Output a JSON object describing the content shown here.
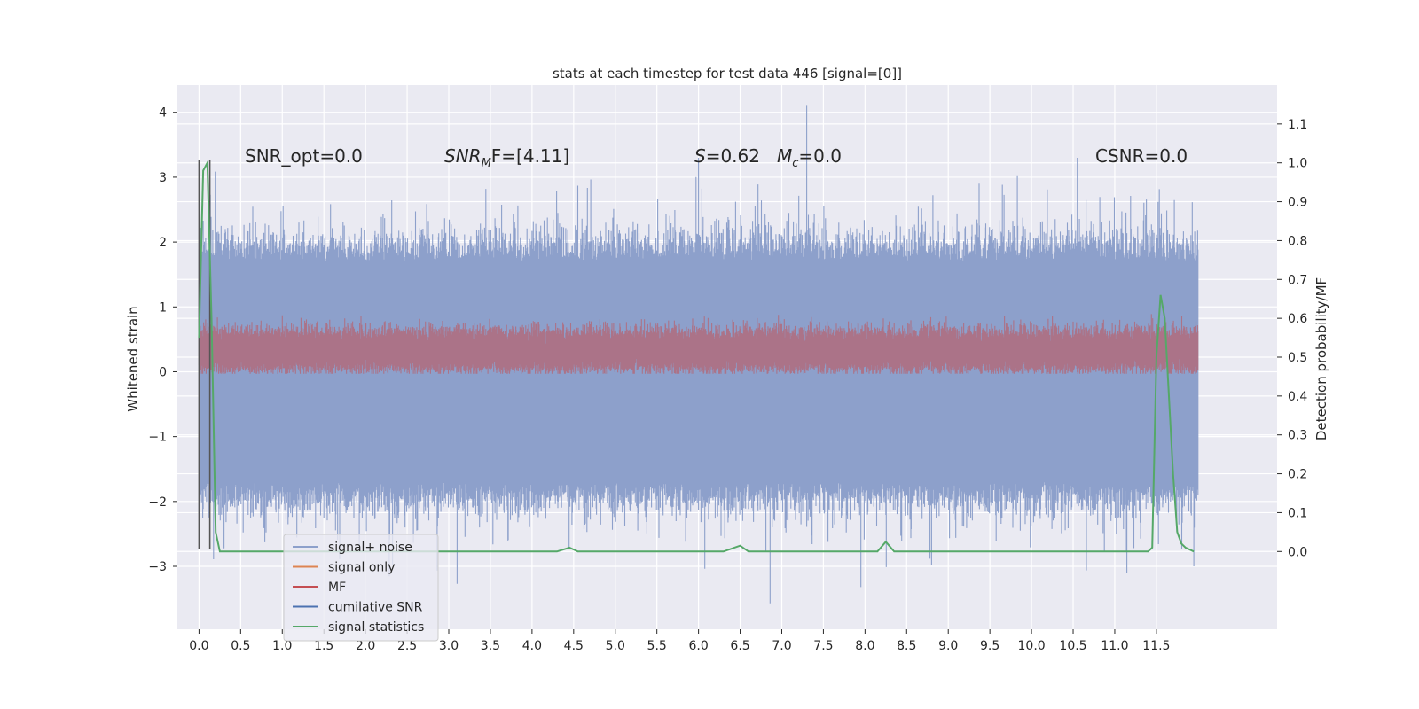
{
  "chart_data": {
    "type": "line",
    "title": "stats at each timestep for test data 446 [signal=[0]]",
    "xlabel": "",
    "ylabel": "Whitened strain",
    "ylabel_right": "Detection probability/MF",
    "xlim": [
      -0.26,
      12.95
    ],
    "ylim": [
      -3.97,
      4.42
    ],
    "ylim_right": [
      -0.2,
      1.2
    ],
    "x_ticks": [
      "0.0",
      "0.5",
      "1.0",
      "1.5",
      "2.0",
      "2.5",
      "3.0",
      "3.5",
      "4.0",
      "4.5",
      "5.0",
      "5.5",
      "6.0",
      "6.5",
      "7.0",
      "7.5",
      "8.0",
      "8.5",
      "9.0",
      "9.5",
      "10.0",
      "10.5",
      "11.0",
      "11.5"
    ],
    "y_ticks": [
      "4",
      "3",
      "2",
      "1",
      "0",
      "−1",
      "−2",
      "−3"
    ],
    "y_ticks_right": [
      "1.1",
      "1.0",
      "0.9",
      "0.8",
      "0.7",
      "0.6",
      "0.5",
      "0.4",
      "0.3",
      "0.2",
      "0.1",
      "0.0"
    ],
    "grid": true,
    "legend_placement": "lower-left",
    "legend": [
      {
        "label": "signal+ noise",
        "color": "#8da0cb"
      },
      {
        "label": "signal only",
        "color": "#dd8452"
      },
      {
        "label": "MF",
        "color": "#c44e52"
      },
      {
        "label": "cumilative SNR",
        "color": "#4c72b0"
      },
      {
        "label": "signal statistics",
        "color": "#55a868"
      }
    ],
    "annotations": {
      "snr_opt": "SNR_opt=0.0",
      "snr_mf_sym": "SNR",
      "snr_mf_sub": "M",
      "snr_mf_rest": "F=[4.11]",
      "s_sym": "S",
      "s_val": "=0.62",
      "mc_sym": "M",
      "mc_sub": "c",
      "mc_val": "=0.0",
      "csnr": "CSNR=0.0"
    },
    "series": [
      {
        "name": "signal+ noise",
        "axis": "left",
        "color": "#8da0cb",
        "x_range": [
          0.0,
          12.0
        ],
        "band_low": -1.7,
        "band_high": 1.7,
        "min": -3.6,
        "max": 4.1,
        "spikes": [
          [
            7.3,
            4.1
          ],
          [
            6.86,
            -3.57
          ],
          [
            3.1,
            -3.27
          ],
          [
            7.95,
            -3.32
          ],
          [
            11.95,
            -3.0
          ],
          [
            6.0,
            3.3
          ],
          [
            10.55,
            3.3
          ]
        ]
      },
      {
        "name": "MF",
        "axis": "left",
        "color": "#c44e52",
        "x_range": [
          0.0,
          12.0
        ],
        "band_low": 0.0,
        "band_high": 0.8
      },
      {
        "name": "signal statistics",
        "axis": "right",
        "color": "#55a868",
        "x": [
          0.0,
          0.05,
          0.1,
          0.15,
          0.2,
          0.25,
          0.3,
          4.3,
          4.45,
          4.55,
          6.3,
          6.5,
          6.6,
          6.7,
          8.15,
          8.25,
          8.35,
          11.4,
          11.45,
          11.5,
          11.55,
          11.6,
          11.65,
          11.7,
          11.75,
          11.8,
          11.85,
          11.9,
          11.95
        ],
        "y": [
          0.55,
          0.98,
          1.0,
          0.6,
          0.05,
          0.0,
          0.0,
          0.0,
          0.01,
          0.0,
          0.0,
          0.015,
          0.0,
          0.0,
          0.0,
          0.025,
          0.0,
          0.0,
          0.01,
          0.5,
          0.66,
          0.6,
          0.4,
          0.2,
          0.05,
          0.02,
          0.01,
          0.005,
          0.0
        ]
      },
      {
        "name": "markers",
        "axis": "left",
        "color": "#555555",
        "x": [
          0.0,
          0.13
        ],
        "y_low": -2.73,
        "y_high": 3.27
      }
    ]
  }
}
